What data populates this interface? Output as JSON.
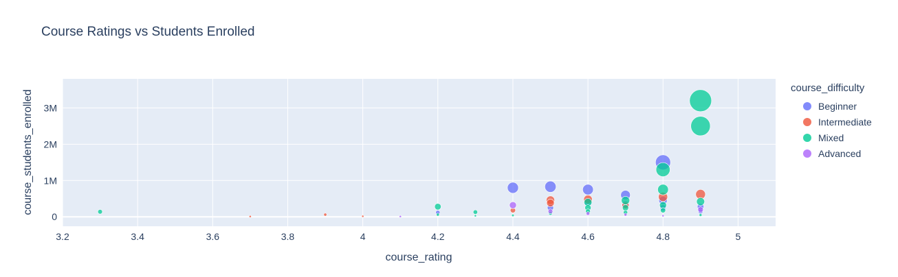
{
  "chart_data": {
    "type": "scatter",
    "title": "Course Ratings vs Students Enrolled",
    "xlabel": "course_rating",
    "ylabel": "course_students_enrolled",
    "xlim": [
      3.2,
      5.1
    ],
    "ylim": [
      -260000,
      3800000
    ],
    "x_ticks": [
      3.2,
      3.4,
      3.6,
      3.8,
      4.0,
      4.2,
      4.4,
      4.6,
      4.8,
      5.0
    ],
    "x_tick_labels": [
      "3.2",
      "3.4",
      "3.6",
      "3.8",
      "4",
      "4.2",
      "4.4",
      "4.6",
      "4.8",
      "5"
    ],
    "y_ticks": [
      0,
      1000000,
      2000000,
      3000000
    ],
    "y_tick_labels": [
      "0",
      "1M",
      "2M",
      "3M"
    ],
    "grid": true,
    "legend_title": "course_difficulty",
    "legend_position": "right",
    "background": "#e5ecf6",
    "series": [
      {
        "name": "Beginner",
        "color": "#636efa",
        "points": [
          [
            4.2,
            120000
          ],
          [
            4.4,
            800000
          ],
          [
            4.5,
            830000
          ],
          [
            4.5,
            250000
          ],
          [
            4.6,
            750000
          ],
          [
            4.6,
            420000
          ],
          [
            4.7,
            600000
          ],
          [
            4.7,
            350000
          ],
          [
            4.8,
            1500000
          ],
          [
            4.8,
            450000
          ],
          [
            4.8,
            250000
          ],
          [
            4.9,
            280000
          ],
          [
            4.9,
            150000
          ]
        ]
      },
      {
        "name": "Intermediate",
        "color": "#ef553b",
        "points": [
          [
            3.7,
            10000
          ],
          [
            3.9,
            60000
          ],
          [
            4.0,
            15000
          ],
          [
            4.4,
            180000
          ],
          [
            4.5,
            460000
          ],
          [
            4.5,
            380000
          ],
          [
            4.6,
            480000
          ],
          [
            4.7,
            320000
          ],
          [
            4.8,
            550000
          ],
          [
            4.9,
            620000
          ]
        ]
      },
      {
        "name": "Mixed",
        "color": "#00cc96",
        "points": [
          [
            3.3,
            140000
          ],
          [
            4.2,
            280000
          ],
          [
            4.2,
            60000
          ],
          [
            4.3,
            130000
          ],
          [
            4.3,
            30000
          ],
          [
            4.4,
            40000
          ],
          [
            4.5,
            100000
          ],
          [
            4.6,
            400000
          ],
          [
            4.6,
            250000
          ],
          [
            4.6,
            150000
          ],
          [
            4.7,
            450000
          ],
          [
            4.7,
            250000
          ],
          [
            4.7,
            120000
          ],
          [
            4.8,
            1300000
          ],
          [
            4.8,
            750000
          ],
          [
            4.8,
            320000
          ],
          [
            4.8,
            180000
          ],
          [
            4.9,
            3200000
          ],
          [
            4.9,
            2500000
          ],
          [
            4.9,
            420000
          ],
          [
            4.9,
            50000
          ]
        ]
      },
      {
        "name": "Advanced",
        "color": "#ab63fa",
        "points": [
          [
            4.1,
            10000
          ],
          [
            4.4,
            320000
          ],
          [
            4.5,
            150000
          ],
          [
            4.6,
            90000
          ],
          [
            4.7,
            60000
          ],
          [
            4.8,
            30000
          ],
          [
            4.9,
            200000
          ]
        ]
      }
    ]
  }
}
